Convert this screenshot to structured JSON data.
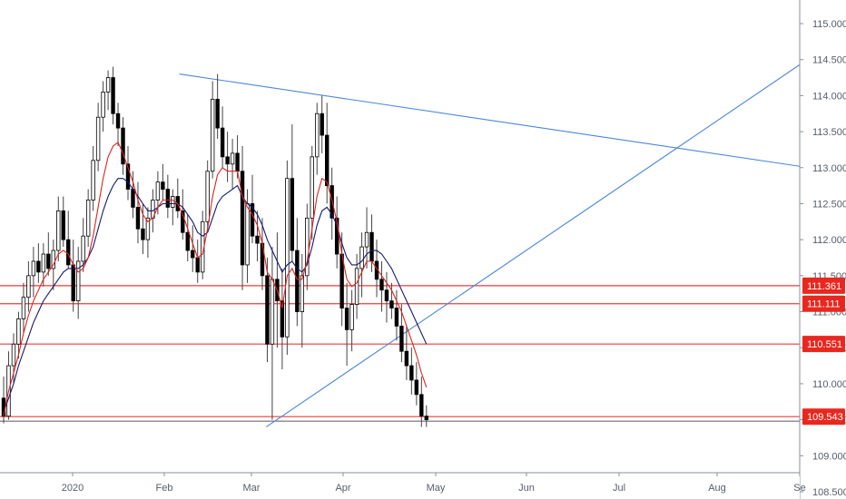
{
  "chart_data": {
    "type": "candlestick",
    "y_axis": {
      "range": [
        108.5,
        115.25
      ],
      "ticks": [
        "108.500",
        "109.000",
        "109.500",
        "110.000",
        "110.500",
        "111.000",
        "111.500",
        "112.000",
        "112.500",
        "113.000",
        "113.500",
        "114.000",
        "114.500",
        "115.000"
      ]
    },
    "x_axis": {
      "labels": [
        "2020",
        "Feb",
        "Mar",
        "Apr",
        "May",
        "Jun",
        "Jul",
        "Aug",
        "Se"
      ]
    },
    "colors": {
      "candle": "#000000",
      "ma_fast": "#e0241c",
      "ma_slow": "#131a6e",
      "trendline": "#4a86d8",
      "level": "#f23a3a",
      "badge": "#e8281f",
      "dark_badge": "#111111"
    },
    "candles": [
      [
        109.8,
        110.1,
        109.45,
        109.55
      ],
      [
        109.55,
        110.45,
        109.5,
        110.25
      ],
      [
        110.25,
        110.7,
        110.0,
        110.55
      ],
      [
        110.55,
        111.0,
        110.35,
        110.9
      ],
      [
        110.9,
        111.4,
        110.7,
        111.2
      ],
      [
        111.2,
        111.7,
        111.0,
        111.5
      ],
      [
        111.5,
        111.9,
        111.2,
        111.7
      ],
      [
        111.7,
        111.95,
        111.4,
        111.55
      ],
      [
        111.55,
        111.95,
        111.35,
        111.8
      ],
      [
        111.8,
        112.1,
        111.5,
        111.6
      ],
      [
        111.6,
        112.0,
        111.3,
        111.85
      ],
      [
        111.85,
        112.6,
        111.7,
        112.4
      ],
      [
        112.4,
        112.6,
        111.9,
        112.0
      ],
      [
        112.0,
        112.4,
        111.6,
        111.65
      ],
      [
        111.65,
        112.0,
        111.0,
        111.15
      ],
      [
        111.15,
        111.9,
        110.9,
        111.7
      ],
      [
        111.7,
        112.3,
        111.55,
        112.05
      ],
      [
        112.05,
        112.7,
        111.9,
        112.55
      ],
      [
        112.55,
        113.3,
        112.4,
        113.1
      ],
      [
        113.1,
        113.9,
        112.95,
        113.7
      ],
      [
        113.7,
        114.2,
        113.5,
        114.05
      ],
      [
        114.05,
        114.35,
        113.8,
        114.25
      ],
      [
        114.25,
        114.4,
        113.6,
        113.75
      ],
      [
        113.75,
        113.9,
        113.3,
        113.55
      ],
      [
        113.55,
        113.7,
        112.9,
        113.05
      ],
      [
        113.05,
        113.3,
        112.55,
        112.7
      ],
      [
        112.7,
        112.95,
        112.3,
        112.45
      ],
      [
        112.45,
        112.8,
        111.95,
        112.15
      ],
      [
        112.15,
        112.5,
        111.8,
        112.0
      ],
      [
        112.0,
        112.45,
        111.75,
        112.3
      ],
      [
        112.3,
        112.7,
        112.1,
        112.55
      ],
      [
        112.55,
        112.95,
        112.35,
        112.8
      ],
      [
        112.8,
        113.05,
        112.55,
        112.7
      ],
      [
        112.7,
        112.9,
        112.3,
        112.45
      ],
      [
        112.45,
        112.7,
        112.2,
        112.6
      ],
      [
        112.6,
        112.85,
        112.3,
        112.4
      ],
      [
        112.4,
        112.7,
        112.0,
        112.1
      ],
      [
        112.1,
        112.35,
        111.7,
        111.85
      ],
      [
        111.85,
        112.2,
        111.55,
        111.75
      ],
      [
        111.75,
        112.0,
        111.4,
        111.55
      ],
      [
        111.55,
        112.4,
        111.45,
        112.25
      ],
      [
        112.25,
        113.1,
        112.1,
        112.95
      ],
      [
        112.95,
        114.2,
        112.85,
        113.95
      ],
      [
        113.95,
        114.3,
        113.4,
        113.55
      ],
      [
        113.55,
        113.85,
        113.0,
        113.15
      ],
      [
        113.15,
        113.5,
        112.8,
        113.05
      ],
      [
        113.05,
        113.4,
        112.7,
        113.2
      ],
      [
        113.2,
        113.45,
        112.85,
        112.95
      ],
      [
        112.95,
        113.3,
        111.3,
        111.65
      ],
      [
        111.65,
        112.7,
        111.4,
        112.5
      ],
      [
        112.5,
        112.9,
        111.95,
        112.05
      ],
      [
        112.05,
        112.4,
        111.7,
        111.95
      ],
      [
        111.95,
        112.3,
        111.3,
        111.5
      ],
      [
        111.5,
        111.75,
        110.3,
        110.55
      ],
      [
        110.55,
        111.9,
        109.5,
        111.45
      ],
      [
        111.45,
        112.1,
        110.5,
        111.15
      ],
      [
        111.15,
        111.6,
        110.2,
        110.65
      ],
      [
        110.65,
        113.1,
        110.4,
        112.85
      ],
      [
        112.85,
        113.6,
        111.7,
        111.85
      ],
      [
        111.85,
        112.3,
        110.8,
        111.0
      ],
      [
        111.0,
        111.8,
        110.5,
        111.5
      ],
      [
        111.5,
        112.5,
        111.3,
        112.3
      ],
      [
        112.3,
        113.3,
        112.0,
        113.15
      ],
      [
        113.15,
        113.9,
        112.9,
        113.75
      ],
      [
        113.75,
        114.0,
        113.2,
        113.45
      ],
      [
        113.45,
        113.9,
        112.5,
        112.75
      ],
      [
        112.75,
        113.0,
        112.0,
        112.3
      ],
      [
        112.3,
        112.6,
        111.6,
        111.8
      ],
      [
        111.8,
        112.1,
        110.8,
        111.05
      ],
      [
        111.05,
        111.4,
        110.25,
        110.75
      ],
      [
        110.75,
        111.3,
        110.45,
        111.1
      ],
      [
        111.1,
        111.8,
        110.9,
        111.6
      ],
      [
        111.6,
        112.1,
        111.2,
        111.9
      ],
      [
        111.9,
        112.45,
        111.6,
        112.1
      ],
      [
        112.1,
        112.35,
        111.55,
        111.7
      ],
      [
        111.7,
        112.0,
        111.2,
        111.45
      ],
      [
        111.45,
        111.7,
        111.0,
        111.3
      ],
      [
        111.3,
        111.55,
        110.85,
        111.15
      ],
      [
        111.15,
        111.4,
        110.9,
        111.05
      ],
      [
        111.05,
        111.3,
        110.6,
        110.8
      ],
      [
        110.8,
        111.1,
        110.3,
        110.45
      ],
      [
        110.45,
        110.8,
        110.05,
        110.25
      ],
      [
        110.25,
        110.5,
        109.85,
        110.05
      ],
      [
        110.05,
        110.3,
        109.7,
        109.85
      ],
      [
        109.85,
        110.1,
        109.4,
        109.55
      ],
      [
        109.55,
        109.7,
        109.4,
        109.5
      ]
    ],
    "ma_fast": [
      109.55,
      109.9,
      110.15,
      110.4,
      110.7,
      110.95,
      111.15,
      111.3,
      111.45,
      111.55,
      111.65,
      111.8,
      111.85,
      111.8,
      111.65,
      111.55,
      111.6,
      111.75,
      112.05,
      112.45,
      112.85,
      113.15,
      113.3,
      113.35,
      113.2,
      113.0,
      112.8,
      112.55,
      112.35,
      112.25,
      112.3,
      112.45,
      112.55,
      112.55,
      112.55,
      112.5,
      112.35,
      112.15,
      111.95,
      111.75,
      111.8,
      112.15,
      112.6,
      112.9,
      113.0,
      112.95,
      112.95,
      112.95,
      112.6,
      112.45,
      112.35,
      112.2,
      111.95,
      111.55,
      111.45,
      111.3,
      111.05,
      111.5,
      111.6,
      111.45,
      111.45,
      111.7,
      112.15,
      112.6,
      112.85,
      112.8,
      112.55,
      112.25,
      111.8,
      111.45,
      111.35,
      111.4,
      111.55,
      111.7,
      111.7,
      111.6,
      111.5,
      111.4,
      111.3,
      111.15,
      111.0,
      110.8,
      110.6,
      110.4,
      110.15,
      109.95
    ],
    "ma_slow": [
      109.6,
      109.8,
      110.0,
      110.25,
      110.45,
      110.65,
      110.85,
      111.0,
      111.15,
      111.25,
      111.35,
      111.45,
      111.55,
      111.6,
      111.6,
      111.6,
      111.65,
      111.75,
      111.9,
      112.15,
      112.4,
      112.6,
      112.75,
      112.85,
      112.85,
      112.8,
      112.7,
      112.6,
      112.5,
      112.4,
      112.4,
      112.45,
      112.5,
      112.5,
      112.5,
      112.5,
      112.45,
      112.35,
      112.25,
      112.1,
      112.05,
      112.1,
      112.3,
      112.5,
      112.6,
      112.65,
      112.7,
      112.75,
      112.6,
      112.5,
      112.45,
      112.35,
      112.2,
      112.0,
      111.85,
      111.7,
      111.55,
      111.65,
      111.7,
      111.6,
      111.55,
      111.65,
      111.9,
      112.2,
      112.4,
      112.45,
      112.35,
      112.2,
      111.95,
      111.75,
      111.65,
      111.65,
      111.7,
      111.8,
      111.85,
      111.85,
      111.8,
      111.7,
      111.6,
      111.45,
      111.3,
      111.15,
      111.0,
      110.85,
      110.7,
      110.55
    ],
    "levels": [
      {
        "value": 111.361,
        "label": "111.361"
      },
      {
        "value": 111.111,
        "label": "111.111"
      },
      {
        "value": 110.551,
        "label": "110.551"
      },
      {
        "value": 109.543,
        "label": "109.543"
      }
    ],
    "trendlines": [
      {
        "from": {
          "date": "2020-02-06",
          "price": 114.3
        },
        "to": {
          "date": "2020-09-28",
          "price": 112.85
        }
      },
      {
        "from": {
          "date": "2020-03-06",
          "price": 109.4
        },
        "to": {
          "date": "2020-09-28",
          "price": 115.2
        }
      }
    ]
  }
}
